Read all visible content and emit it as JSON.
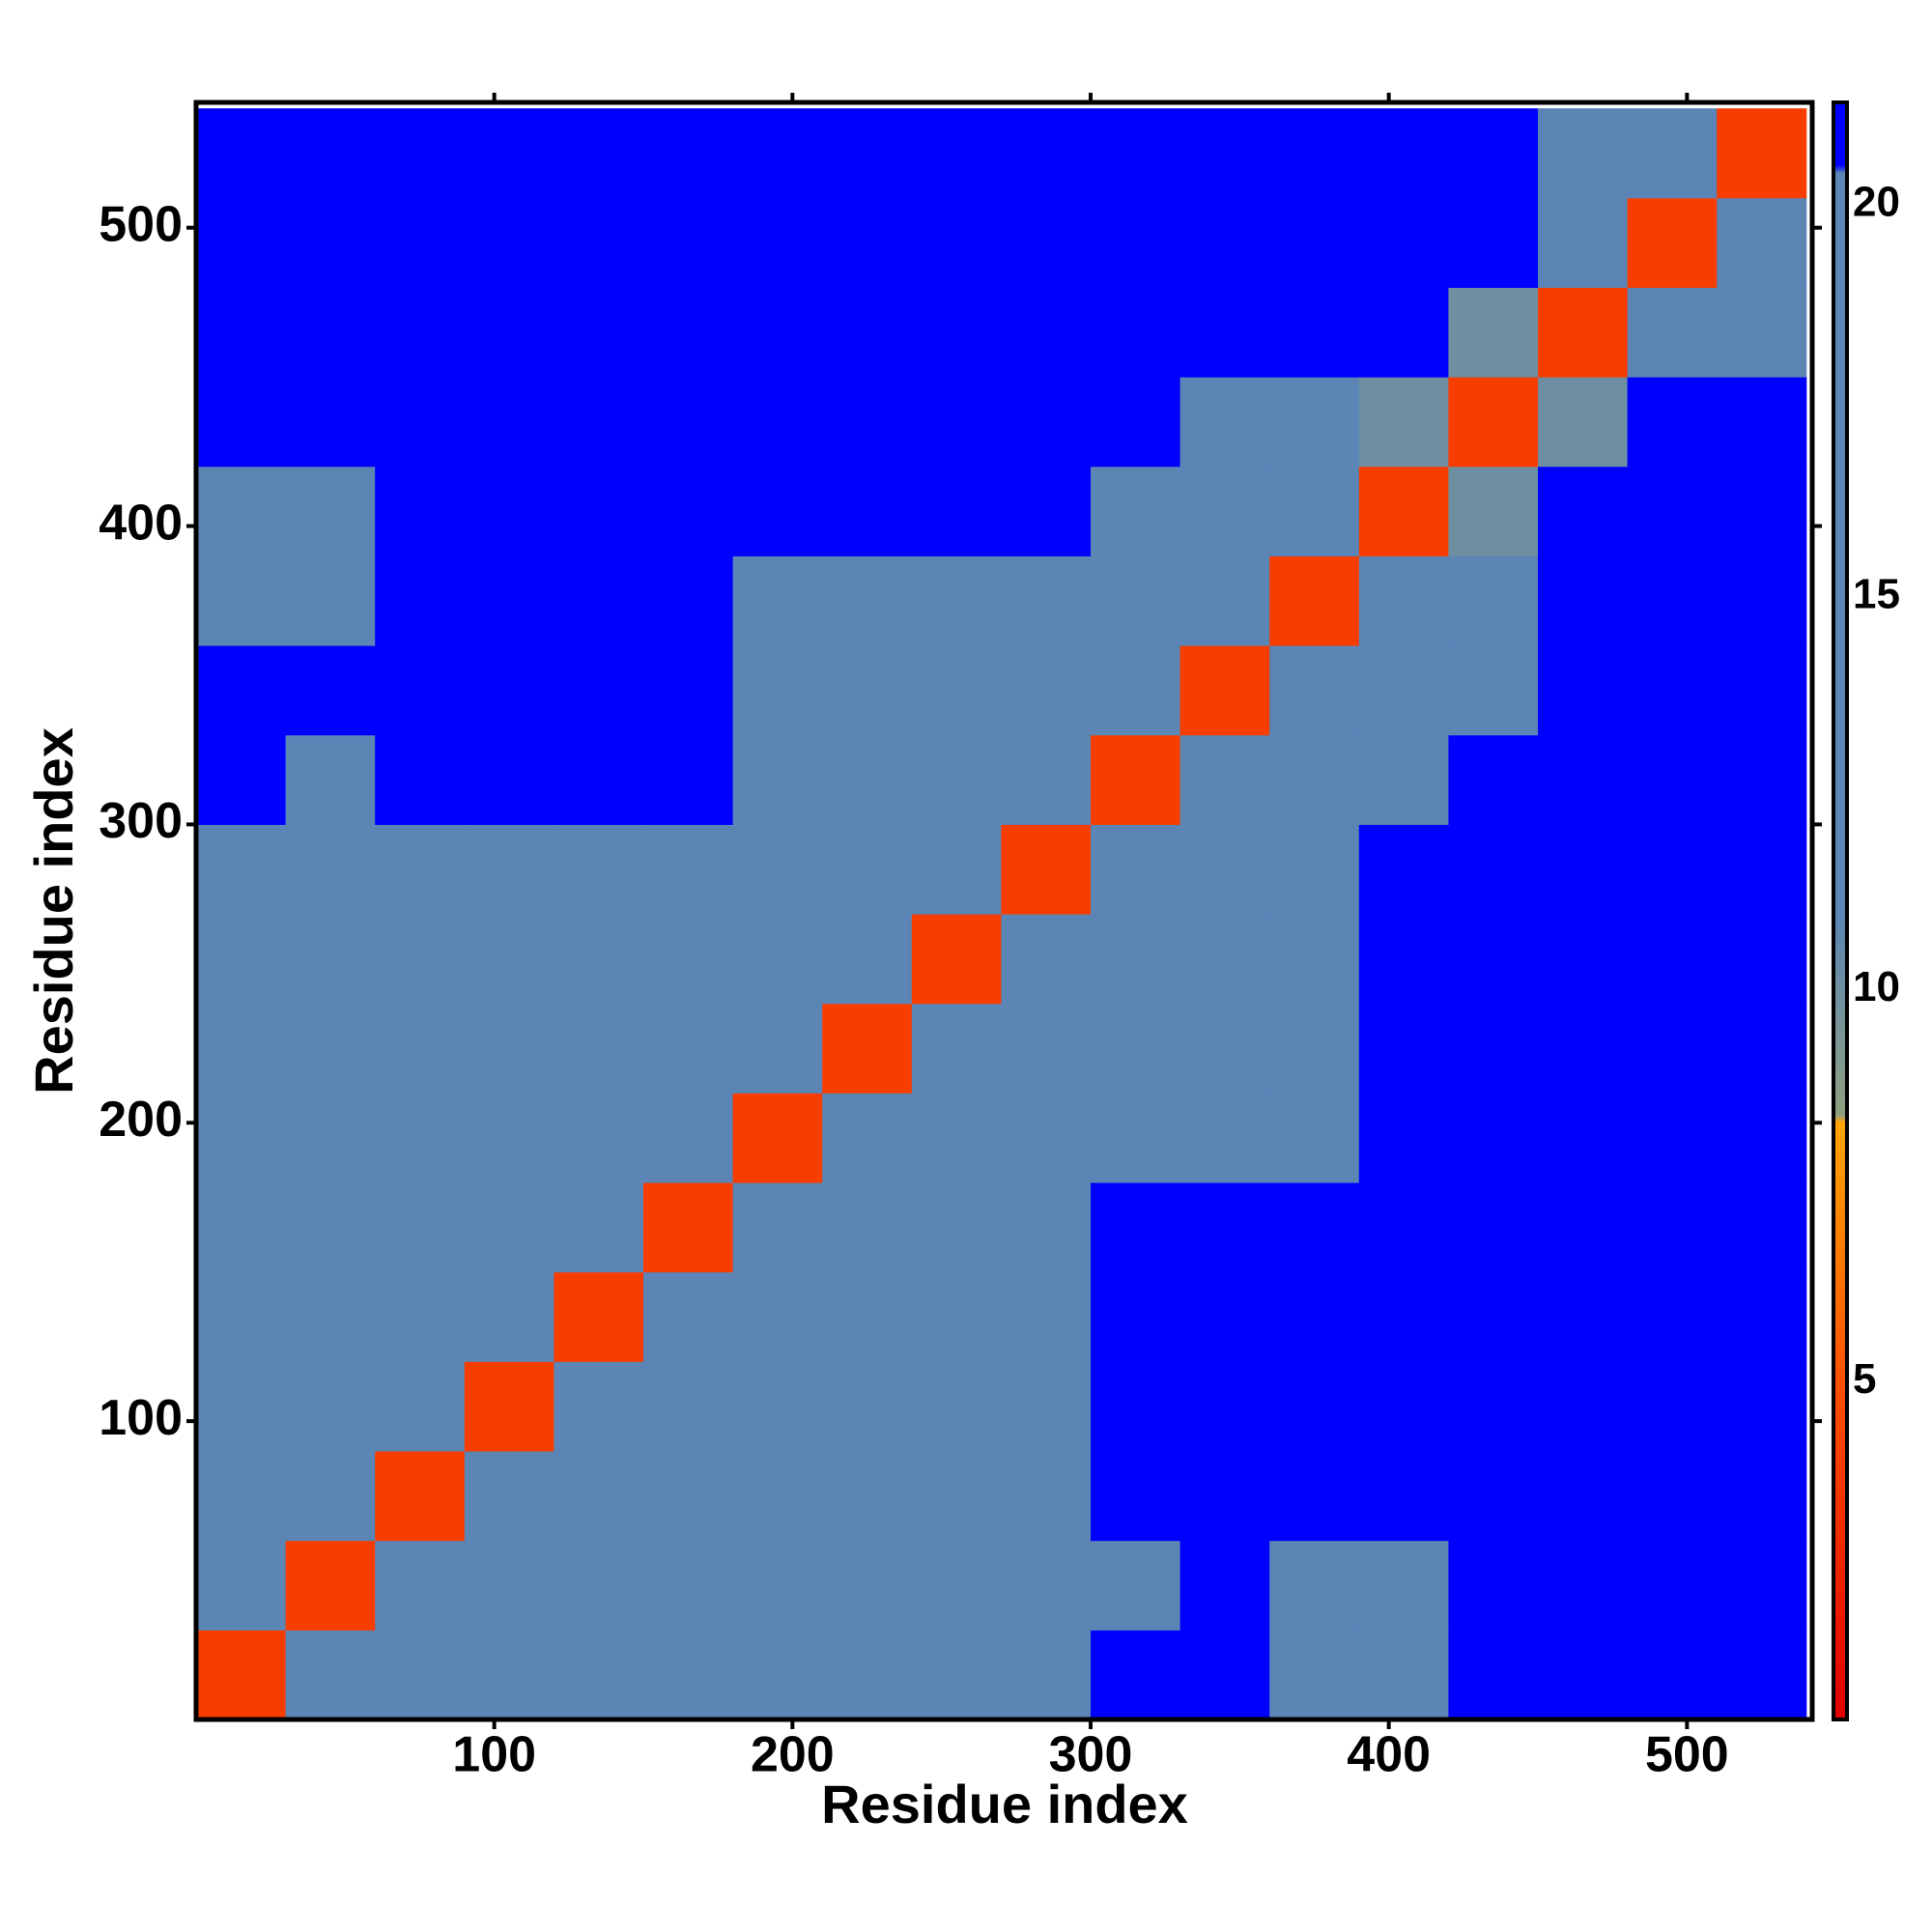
{
  "chart_data": {
    "type": "heatmap",
    "x_label": "Residue index",
    "y_label": "Residue index",
    "bins": [
      0,
      30,
      60,
      90,
      120,
      150,
      180,
      210,
      240,
      270,
      300,
      330,
      360,
      390,
      420,
      450,
      480,
      510,
      540
    ],
    "z": [
      [
        4,
        12,
        17,
        17,
        17,
        17,
        19,
        19,
        19,
        19,
        21,
        21,
        18,
        18,
        21,
        21,
        21,
        21
      ],
      [
        12,
        4,
        12,
        17,
        17,
        17,
        17,
        19,
        19,
        19,
        17,
        21,
        17,
        17,
        21,
        21,
        21,
        21
      ],
      [
        17,
        12,
        4,
        12,
        17,
        17,
        17,
        17,
        19,
        19,
        21,
        21,
        21,
        21,
        21,
        21,
        21,
        21
      ],
      [
        17,
        17,
        12,
        4,
        12,
        17,
        17,
        17,
        17,
        19,
        21,
        21,
        21,
        21,
        21,
        21,
        21,
        21
      ],
      [
        17,
        17,
        17,
        12,
        4,
        12,
        17,
        17,
        17,
        17,
        21,
        21,
        21,
        21,
        21,
        21,
        21,
        21
      ],
      [
        17,
        17,
        17,
        17,
        12,
        4,
        12,
        17,
        17,
        17,
        21,
        21,
        21,
        21,
        21,
        21,
        21,
        21
      ],
      [
        19,
        17,
        17,
        17,
        17,
        12,
        4,
        12,
        17,
        17,
        18,
        18,
        18,
        21,
        21,
        21,
        21,
        21
      ],
      [
        19,
        19,
        17,
        17,
        17,
        17,
        12,
        4,
        12,
        17,
        18,
        18,
        18,
        21,
        21,
        21,
        21,
        21
      ],
      [
        19,
        19,
        19,
        17,
        17,
        17,
        17,
        12,
        4,
        12,
        18,
        18,
        18,
        21,
        21,
        21,
        21,
        21
      ],
      [
        19,
        19,
        19,
        19,
        17,
        17,
        17,
        17,
        12,
        4,
        12,
        18,
        18,
        21,
        21,
        21,
        21,
        21
      ],
      [
        21,
        17,
        21,
        21,
        21,
        21,
        18,
        18,
        18,
        12,
        4,
        12,
        16,
        16,
        21,
        21,
        21,
        21
      ],
      [
        21,
        21,
        21,
        21,
        21,
        21,
        18,
        18,
        18,
        18,
        12,
        4,
        12,
        16,
        18,
        21,
        21,
        21
      ],
      [
        18,
        17,
        21,
        21,
        21,
        21,
        18,
        18,
        18,
        18,
        16,
        12,
        4,
        12,
        18,
        21,
        21,
        21
      ],
      [
        18,
        17,
        21,
        21,
        21,
        21,
        21,
        21,
        21,
        21,
        16,
        16,
        12,
        4,
        10,
        21,
        21,
        21
      ],
      [
        21,
        21,
        21,
        21,
        21,
        21,
        21,
        21,
        21,
        21,
        21,
        18,
        18,
        10,
        4,
        10,
        21,
        21
      ],
      [
        21,
        21,
        21,
        21,
        21,
        21,
        21,
        21,
        21,
        21,
        21,
        21,
        21,
        21,
        10,
        4,
        12,
        15
      ],
      [
        21,
        21,
        21,
        21,
        21,
        21,
        21,
        21,
        21,
        21,
        21,
        21,
        21,
        21,
        21,
        12,
        4,
        12
      ],
      [
        21,
        21,
        21,
        21,
        21,
        21,
        21,
        21,
        21,
        21,
        21,
        21,
        21,
        21,
        21,
        15,
        12,
        4
      ]
    ],
    "xlim": [
      0,
      542
    ],
    "ylim": [
      0,
      542
    ],
    "xticks": [
      100,
      200,
      300,
      400,
      500
    ],
    "yticks": [
      100,
      200,
      300,
      400,
      500
    ],
    "zlim": [
      0.7,
      21.3
    ],
    "zticks": [
      5,
      10,
      15,
      20
    ],
    "colorscale": [
      [
        0.7,
        "#e00000"
      ],
      [
        5,
        "#ff5000"
      ],
      [
        8.3,
        "#ffa500"
      ],
      [
        8.4,
        "#8fa080"
      ],
      [
        11,
        "#5a85b5"
      ],
      [
        20.4,
        "#5a85b5"
      ],
      [
        20.5,
        "#0000ff"
      ],
      [
        21.3,
        "#0000ff"
      ]
    ]
  }
}
